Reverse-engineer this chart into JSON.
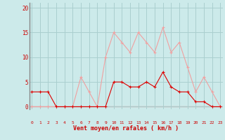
{
  "hours": [
    0,
    1,
    2,
    3,
    4,
    5,
    6,
    7,
    8,
    9,
    10,
    11,
    12,
    13,
    14,
    15,
    16,
    17,
    18,
    19,
    20,
    21,
    22,
    23
  ],
  "wind_avg": [
    3,
    3,
    3,
    0,
    0,
    0,
    0,
    0,
    0,
    0,
    5,
    5,
    4,
    4,
    5,
    4,
    7,
    4,
    3,
    3,
    1,
    1,
    0,
    0
  ],
  "wind_gust": [
    0,
    0,
    0,
    0,
    0,
    0,
    6,
    3,
    0,
    10,
    15,
    13,
    11,
    15,
    13,
    11,
    16,
    11,
    13,
    8,
    3,
    6,
    3,
    0
  ],
  "line_color_avg": "#dd0000",
  "line_color_gust": "#f0a0a0",
  "bg_color": "#cceaea",
  "grid_color": "#aacfcf",
  "xlabel": "Vent moyen/en rafales ( km/h )",
  "ytick_labels": [
    "0",
    "5",
    "10",
    "15",
    "20"
  ],
  "ytick_vals": [
    0,
    5,
    10,
    15,
    20
  ],
  "ylim": [
    -0.5,
    21
  ],
  "xlim": [
    -0.3,
    23.3
  ]
}
